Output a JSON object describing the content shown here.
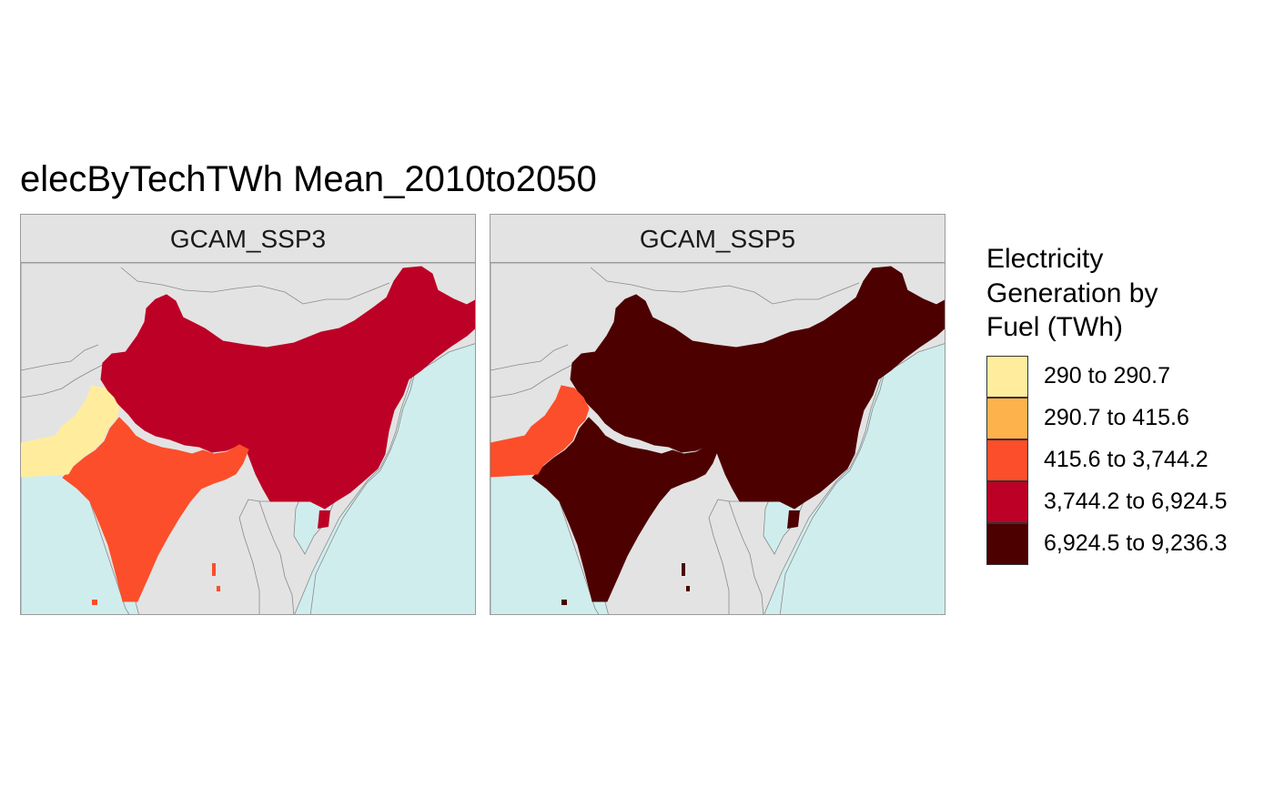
{
  "title": "elecByTechTWh Mean_2010to2050",
  "colors": {
    "ocean": "#d0edee",
    "land": "#e3e3e3",
    "border": "#8a8a8a",
    "strip": "#e3e3e3"
  },
  "legend": {
    "title": "Electricity Generation by Fuel (TWh)",
    "items": [
      {
        "label": "290 to 290.7",
        "color": "#ffed9d"
      },
      {
        "label": "290.7 to 415.6",
        "color": "#feb24c"
      },
      {
        "label": "415.6 to 3,744.2",
        "color": "#fc4e2a"
      },
      {
        "label": "3,744.2 to 6,924.5",
        "color": "#bd0026"
      },
      {
        "label": "6,924.5 to 9,236.3",
        "color": "#4d0000"
      }
    ]
  },
  "panels": [
    {
      "label": "GCAM_SSP3",
      "regions": [
        {
          "name": "China",
          "color": "#bd0026"
        },
        {
          "name": "India",
          "color": "#fc4e2a"
        },
        {
          "name": "Pakistan",
          "color": "#ffed9d"
        }
      ]
    },
    {
      "label": "GCAM_SSP5",
      "regions": [
        {
          "name": "China",
          "color": "#4d0000"
        },
        {
          "name": "India",
          "color": "#4d0000"
        },
        {
          "name": "Pakistan",
          "color": "#fc4e2a"
        }
      ]
    }
  ]
}
